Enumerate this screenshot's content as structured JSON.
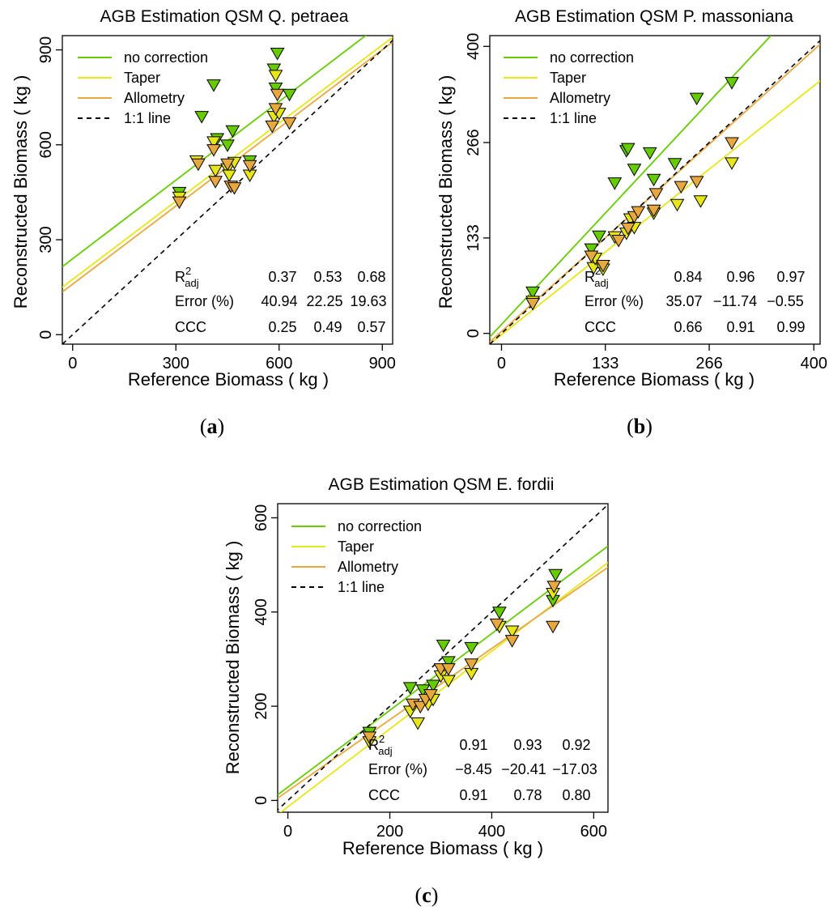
{
  "figure": {
    "panel_labels": [
      {
        "open": "(",
        "letter": "a",
        "close": ")"
      },
      {
        "open": "(",
        "letter": "b",
        "close": ")"
      },
      {
        "open": "(",
        "letter": "c",
        "close": ")"
      }
    ]
  },
  "colors": {
    "no_correction": "#66cc00",
    "taper": "#e6e619",
    "allometry": "#e8a840",
    "one_to_one": "#000000"
  },
  "chart_data": [
    {
      "type": "scatter",
      "title": "AGB Estimation QSM Q. petraea",
      "xlabel": "Reference Biomass ( kg )",
      "ylabel": "Reconstructed Biomass ( kg )",
      "xlim": [
        -30,
        930
      ],
      "ylim": [
        -30,
        945
      ],
      "xticks": [
        0,
        300,
        600,
        900
      ],
      "yticks": [
        0,
        300,
        600,
        900
      ],
      "xtick_labels": [
        "0",
        "300",
        "600",
        "900"
      ],
      "ytick_labels": [
        "0",
        "300",
        "600",
        "900"
      ],
      "legend": {
        "position": "top-left",
        "entries": [
          "no correction",
          "Taper",
          "Allometry",
          "1:1 line"
        ]
      },
      "stats": {
        "rows": [
          {
            "label": "R",
            "sup": "2",
            "sub": "adj",
            "values": [
              "0.37",
              "0.53",
              "0.68"
            ]
          },
          {
            "label": "Error (%)",
            "values": [
              "40.94",
              "22.25",
              "19.63"
            ]
          },
          {
            "label": "CCC",
            "values": [
              "0.25",
              "0.49",
              "0.57"
            ]
          }
        ]
      },
      "series": [
        {
          "name": "no correction",
          "points": [
            [
              310,
              450
            ],
            [
              375,
              690
            ],
            [
              410,
              790
            ],
            [
              420,
              620
            ],
            [
              450,
              600
            ],
            [
              465,
              645
            ],
            [
              515,
              550
            ],
            [
              585,
              840
            ],
            [
              590,
              780
            ],
            [
              595,
              890
            ],
            [
              630,
              760
            ]
          ],
          "fit": [
            [
              -30,
              215
            ],
            [
              930,
              1010
            ]
          ]
        },
        {
          "name": "Taper",
          "points": [
            [
              310,
              435
            ],
            [
              360,
              550
            ],
            [
              410,
              610
            ],
            [
              415,
              520
            ],
            [
              450,
              525
            ],
            [
              455,
              505
            ],
            [
              470,
              545
            ],
            [
              515,
              505
            ],
            [
              585,
              690
            ],
            [
              590,
              820
            ],
            [
              600,
              700
            ]
          ],
          "fit": [
            [
              -30,
              150
            ],
            [
              930,
              940
            ]
          ]
        },
        {
          "name": "Allometry",
          "points": [
            [
              310,
              420
            ],
            [
              365,
              540
            ],
            [
              410,
              585
            ],
            [
              415,
              485
            ],
            [
              450,
              540
            ],
            [
              460,
              470
            ],
            [
              470,
              465
            ],
            [
              515,
              535
            ],
            [
              580,
              660
            ],
            [
              590,
              715
            ],
            [
              595,
              760
            ],
            [
              630,
              670
            ]
          ],
          "fit": [
            [
              -30,
              135
            ],
            [
              930,
              925
            ]
          ]
        },
        {
          "name": "1:1 line",
          "points": [],
          "fit": [
            [
              -30,
              -30
            ],
            [
              945,
              945
            ]
          ]
        }
      ]
    },
    {
      "type": "scatter",
      "title": "AGB Estimation QSM P. massoniana",
      "xlabel": "Reference Biomass ( kg )",
      "ylabel": "Reconstructed Biomass ( kg )",
      "xlim": [
        -15,
        408
      ],
      "ylim": [
        -15,
        415
      ],
      "xticks": [
        0,
        133,
        266,
        400
      ],
      "yticks": [
        0,
        133,
        266,
        400
      ],
      "xtick_labels": [
        "0",
        "133",
        "266",
        "400"
      ],
      "ytick_labels": [
        "0",
        "133",
        "266",
        "400"
      ],
      "legend": {
        "position": "top-left",
        "entries": [
          "no correction",
          "Taper",
          "Allometry",
          "1:1 line"
        ]
      },
      "stats": {
        "rows": [
          {
            "label": "R",
            "sup": "2",
            "sub": "adj",
            "values": [
              "0.84",
              "0.96",
              "0.97"
            ]
          },
          {
            "label": "Error (%)",
            "values": [
              "35.07",
              "−11.74",
              "−0.55"
            ]
          },
          {
            "label": "CCC",
            "values": [
              "0.66",
              "0.91",
              "0.99"
            ]
          }
        ]
      },
      "series": [
        {
          "name": "no correction",
          "points": [
            [
              40,
              58
            ],
            [
              115,
              118
            ],
            [
              125,
              136
            ],
            [
              145,
              210
            ],
            [
              160,
              255
            ],
            [
              162,
              258
            ],
            [
              170,
              229
            ],
            [
              190,
              252
            ],
            [
              195,
              215
            ],
            [
              222,
              237
            ],
            [
              250,
              328
            ],
            [
              295,
              350
            ]
          ],
          "fit": [
            [
              -15,
              -5
            ],
            [
              345,
              415
            ]
          ]
        },
        {
          "name": "Taper",
          "points": [
            [
              40,
              45
            ],
            [
              118,
              92
            ],
            [
              120,
              105
            ],
            [
              130,
              90
            ],
            [
              145,
              135
            ],
            [
              160,
              140
            ],
            [
              165,
              160
            ],
            [
              170,
              148
            ],
            [
              195,
              168
            ],
            [
              225,
              180
            ],
            [
              255,
              185
            ],
            [
              295,
              238
            ]
          ],
          "fit": [
            [
              -15,
              -15
            ],
            [
              408,
              352
            ]
          ]
        },
        {
          "name": "Allometry",
          "points": [
            [
              40,
              42
            ],
            [
              115,
              108
            ],
            [
              130,
              95
            ],
            [
              150,
              130
            ],
            [
              162,
              147
            ],
            [
              170,
              163
            ],
            [
              175,
              170
            ],
            [
              195,
              172
            ],
            [
              198,
              195
            ],
            [
              230,
              205
            ],
            [
              250,
              212
            ],
            [
              295,
              266
            ]
          ],
          "fit": [
            [
              -15,
              -12
            ],
            [
              408,
              403
            ]
          ]
        },
        {
          "name": "1:1 line",
          "points": [],
          "fit": [
            [
              -15,
              -15
            ],
            [
              415,
              415
            ]
          ]
        }
      ]
    },
    {
      "type": "scatter",
      "title": "AGB Estimation QSM E. fordii",
      "xlabel": "Reference Biomass ( kg )",
      "ylabel": "Reconstructed Biomass ( kg )",
      "xlim": [
        -20,
        628
      ],
      "ylim": [
        -25,
        630
      ],
      "xticks": [
        0,
        200,
        400,
        600
      ],
      "yticks": [
        0,
        200,
        400,
        600
      ],
      "xtick_labels": [
        "0",
        "200",
        "400",
        "600"
      ],
      "ytick_labels": [
        "0",
        "200",
        "400",
        "600"
      ],
      "legend": {
        "position": "top-left",
        "entries": [
          "no correction",
          "Taper",
          "Allometry",
          "1:1 line"
        ]
      },
      "stats": {
        "rows": [
          {
            "label": "R",
            "sup": "2",
            "sub": "adj",
            "values": [
              "0.91",
              "0.93",
              "0.92"
            ]
          },
          {
            "label": "Error (%)",
            "values": [
              "−8.45",
              "−20.41",
              "−17.03"
            ]
          },
          {
            "label": "CCC",
            "values": [
              "0.91",
              "0.78",
              "0.80"
            ]
          }
        ]
      },
      "series": [
        {
          "name": "no correction",
          "points": [
            [
              160,
              145
            ],
            [
              240,
              240
            ],
            [
              265,
              235
            ],
            [
              285,
              245
            ],
            [
              305,
              330
            ],
            [
              315,
              295
            ],
            [
              360,
              325
            ],
            [
              415,
              400
            ],
            [
              520,
              425
            ],
            [
              525,
              480
            ]
          ],
          "fit": [
            [
              -20,
              12
            ],
            [
              628,
              540
            ]
          ]
        },
        {
          "name": "Taper",
          "points": [
            [
              160,
              125
            ],
            [
              240,
              190
            ],
            [
              255,
              165
            ],
            [
              275,
              205
            ],
            [
              285,
              215
            ],
            [
              300,
              265
            ],
            [
              315,
              255
            ],
            [
              360,
              270
            ],
            [
              415,
              370
            ],
            [
              440,
              360
            ],
            [
              520,
              440
            ]
          ],
          "fit": [
            [
              -20,
              -30
            ],
            [
              628,
              505
            ]
          ]
        },
        {
          "name": "Allometry",
          "points": [
            [
              160,
              135
            ],
            [
              245,
              205
            ],
            [
              260,
              200
            ],
            [
              270,
              215
            ],
            [
              280,
              225
            ],
            [
              300,
              280
            ],
            [
              315,
              280
            ],
            [
              360,
              290
            ],
            [
              410,
              375
            ],
            [
              440,
              340
            ],
            [
              520,
              370
            ],
            [
              522,
              455
            ]
          ],
          "fit": [
            [
              -20,
              5
            ],
            [
              628,
              495
            ]
          ]
        },
        {
          "name": "1:1 line",
          "points": [],
          "fit": [
            [
              -25,
              -25
            ],
            [
              630,
              630
            ]
          ]
        }
      ]
    }
  ]
}
